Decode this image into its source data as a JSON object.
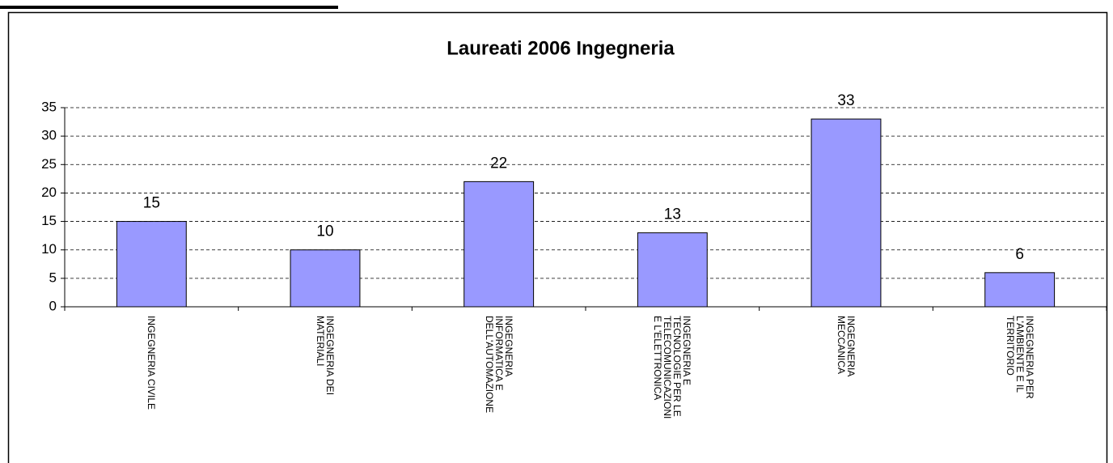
{
  "chart_data": {
    "type": "bar",
    "title": "Laureati 2006 Ingegneria",
    "categories": [
      "INGEGNERIA CIVILE",
      "INGEGNERIA DEI\nMATERIALI",
      "INGEGNERIA\nINFORMATICA E\nDELL'AUTOMAZIONE",
      "INGEGNERIA E\nTECNOLOGIE PER LE\nTELECOMUNICAZIONI\nE L'ELETTRONICA",
      "INGEGNERIA\nMECCANICA",
      "INGEGNERIA PER\nL'AMBIENTE E IL\nTERRITORIO"
    ],
    "values": [
      15,
      10,
      22,
      13,
      33,
      6
    ],
    "color": "#9999ff",
    "ylim": [
      0,
      35
    ],
    "yticks": [
      0,
      5,
      10,
      15,
      20,
      25,
      30,
      35
    ],
    "grid": true
  }
}
